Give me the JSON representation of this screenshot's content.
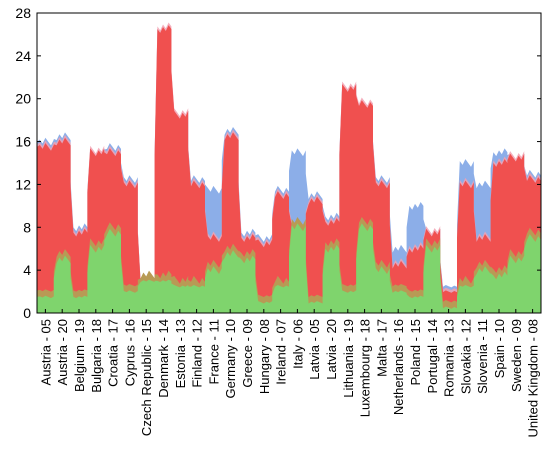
{
  "chart_data": {
    "type": "area",
    "ylim": [
      0,
      28
    ],
    "yticks": [
      0,
      4,
      8,
      12,
      16,
      20,
      24,
      28
    ],
    "xticklabels": [
      "Austria - 05",
      "Austria - 20",
      "Belgium - 19",
      "Bulgaria - 18",
      "Croatia - 17",
      "Cyprus - 16",
      "Czech Republic - 15",
      "Denmark - 14",
      "Estonia - 13",
      "Finland - 12",
      "France - 11",
      "Germany - 10",
      "Greece - 09",
      "Hungary - 08",
      "Ireland - 07",
      "Italy - 06",
      "Latvia - 05",
      "Latvia - 20",
      "Lithuania - 19",
      "Luxembourg - 18",
      "Malta - 17",
      "Netherlands - 16",
      "Poland - 15",
      "Portugal - 14",
      "Romania - 13",
      "Slovakia - 12",
      "Slovenia - 11",
      "Spain - 10",
      "Sweden - 09",
      "United Kingdom - 08"
    ],
    "n_points": 30,
    "colors": {
      "red": "#f0504f",
      "green": "#7fd46d",
      "blue": "#8caee8",
      "olive": "#b89a55",
      "pink": "#f2a1b2"
    },
    "series": [
      {
        "color": "blue",
        "values": [
          16.0,
          16.5,
          8.0,
          15.0,
          15.5,
          12.5,
          3.0,
          26.5,
          18.5,
          12.5,
          11.5,
          17.0,
          7.5,
          7.0,
          11.5,
          15.0,
          11.0,
          9.0,
          21.0,
          19.5,
          12.5,
          6.0,
          10.0,
          7.5,
          2.5,
          14.0,
          12.0,
          15.0,
          14.5,
          13.0
        ]
      },
      {
        "color": "red",
        "values": [
          15.5,
          16.0,
          7.5,
          15.0,
          15.0,
          12.0,
          3.0,
          26.5,
          18.5,
          12.0,
          7.0,
          16.5,
          7.0,
          6.5,
          11.0,
          8.0,
          10.5,
          8.5,
          21.0,
          19.5,
          12.0,
          4.5,
          6.0,
          7.5,
          2.0,
          12.0,
          7.0,
          14.0,
          14.5,
          12.5
        ]
      },
      {
        "color": "green",
        "values": [
          1.5,
          5.0,
          1.5,
          6.0,
          7.5,
          2.0,
          3.0,
          3.0,
          2.5,
          2.5,
          4.0,
          5.5,
          5.0,
          1.0,
          2.5,
          8.0,
          1.0,
          6.0,
          2.0,
          8.0,
          4.0,
          2.0,
          1.5,
          6.0,
          0.5,
          2.5,
          4.0,
          3.5,
          5.0,
          7.0
        ]
      }
    ]
  }
}
